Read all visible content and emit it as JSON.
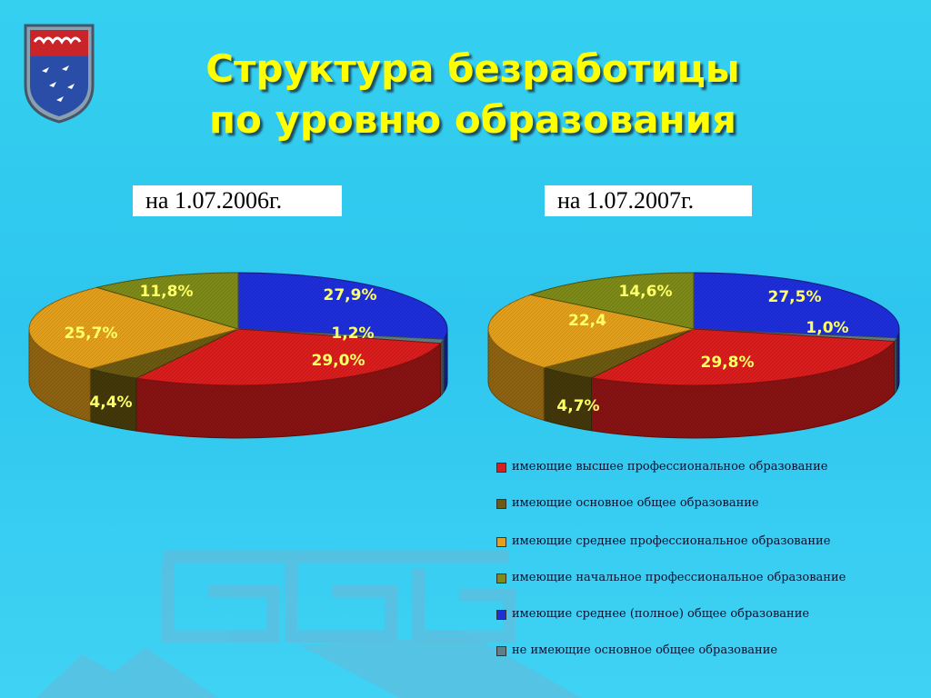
{
  "title": {
    "line1": "Структура безработицы",
    "line2": "по уровню образования"
  },
  "colors": {
    "higher_prof": "#d81e1e",
    "basic_general": "#6b5a12",
    "secondary_prof": "#e3a01e",
    "primary_prof": "#7e8a1a",
    "full_secondary_general": "#1e2fd8",
    "no_basic_general": "#5f7f86",
    "title": "#ffff00"
  },
  "legend": [
    {
      "key": "higher_prof",
      "label": "имеющие высшее профессиональное образование"
    },
    {
      "key": "basic_general",
      "label": "имеющие основное общее образование"
    },
    {
      "key": "secondary_prof",
      "label": "имеющие среднее профессиональное образование"
    },
    {
      "key": "primary_prof",
      "label": "имеющие начальное профессиональное образование"
    },
    {
      "key": "full_secondary_general",
      "label": "имеющие среднее (полное)  общее образование"
    },
    {
      "key": "no_basic_general",
      "label": "не имеющие основное общее  образование"
    }
  ],
  "chart_data": [
    {
      "type": "pie",
      "title": "на 1.07.2006г.",
      "slices": [
        {
          "key": "full_secondary_general",
          "value": 27.9,
          "label": "27,9%"
        },
        {
          "key": "no_basic_general",
          "value": 1.2,
          "label": "1,2%"
        },
        {
          "key": "higher_prof",
          "value": 29.0,
          "label": "29,0%"
        },
        {
          "key": "basic_general",
          "value": 4.4,
          "label": "4,4%"
        },
        {
          "key": "secondary_prof",
          "value": 25.7,
          "label": "25,7%"
        },
        {
          "key": "primary_prof",
          "value": 11.8,
          "label": "11,8%"
        }
      ]
    },
    {
      "type": "pie",
      "title": "на 1.07.2007г.",
      "slices": [
        {
          "key": "full_secondary_general",
          "value": 27.5,
          "label": "27,5%"
        },
        {
          "key": "no_basic_general",
          "value": 1.0,
          "label": "1,0%"
        },
        {
          "key": "higher_prof",
          "value": 29.8,
          "label": "29,8%"
        },
        {
          "key": "basic_general",
          "value": 4.7,
          "label": "4,7%"
        },
        {
          "key": "secondary_prof",
          "value": 22.4,
          "label": "22,4"
        },
        {
          "key": "primary_prof",
          "value": 14.6,
          "label": "14,6%"
        }
      ]
    }
  ]
}
